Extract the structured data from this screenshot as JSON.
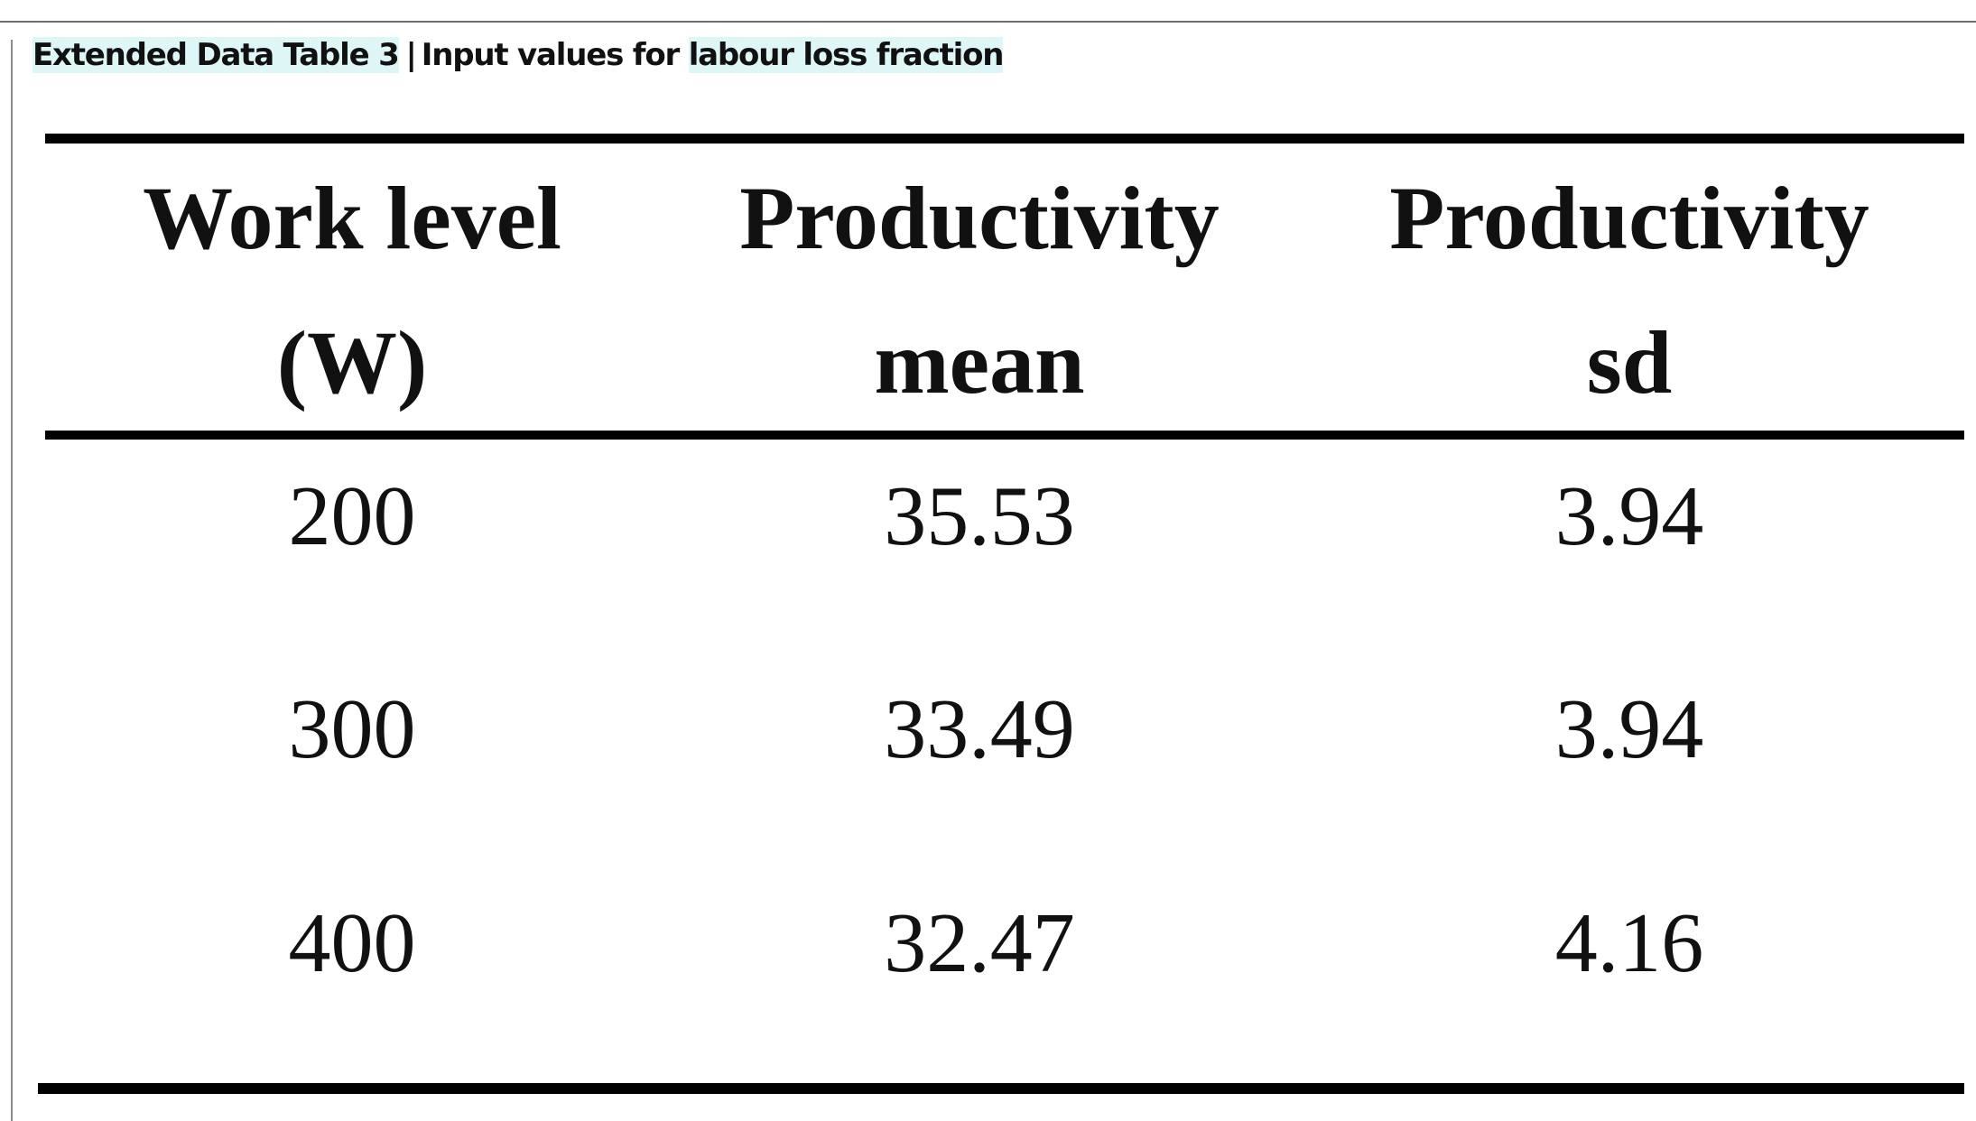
{
  "caption": {
    "label": "Extended Data Table 3",
    "separator": "|",
    "text_before_highlight": "Input values for",
    "highlight": "labour loss fraction"
  },
  "table": {
    "columns": [
      {
        "line1": "Work level",
        "line2": "(W)"
      },
      {
        "line1": "Productivity",
        "line2": "mean"
      },
      {
        "line1": "Productivity",
        "line2": "sd"
      }
    ],
    "rows": [
      {
        "work_level": "200",
        "productivity_mean": "35.53",
        "productivity_sd": "3.94"
      },
      {
        "work_level": "300",
        "productivity_mean": "33.49",
        "productivity_sd": "3.94"
      },
      {
        "work_level": "400",
        "productivity_mean": "32.47",
        "productivity_sd": "4.16"
      }
    ]
  },
  "chart_data": {
    "type": "table",
    "title": "",
    "columns": [
      "Work level (W)",
      "Productivity mean",
      "Productivity sd"
    ],
    "rows": [
      [
        200,
        35.53,
        3.94
      ],
      [
        300,
        33.49,
        3.94
      ],
      [
        400,
        32.47,
        4.16
      ]
    ]
  }
}
